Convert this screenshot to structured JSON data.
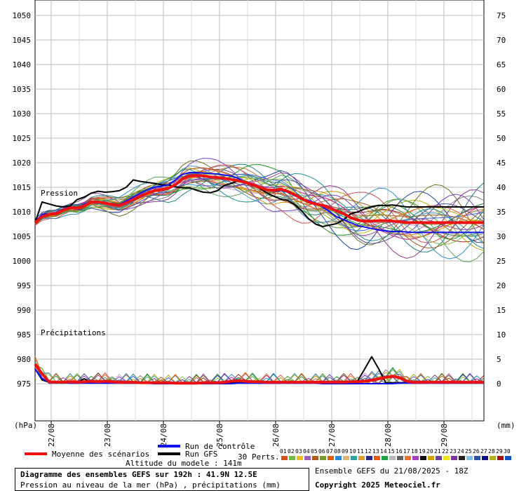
{
  "chart_data": {
    "type": "line",
    "title": "Diagramme des ensembles GEFS sur 192h : 41.9N 12.5E",
    "subtitle": "Pression au niveau de la mer (hPa) , précipitations (mm)",
    "left_axis_unit": "(hPa)",
    "right_axis_unit": "(mm)",
    "left_ticks": [
      1050,
      1045,
      1040,
      1035,
      1030,
      1025,
      1020,
      1015,
      1010,
      1005,
      1000,
      995,
      990,
      985,
      980,
      975
    ],
    "right_ticks": [
      75,
      70,
      65,
      60,
      55,
      50,
      45,
      40,
      35,
      30,
      25,
      20,
      15,
      10,
      5,
      0
    ],
    "ylim_pressure": [
      968.5,
      1052
    ],
    "x_ticks": [
      "22/08",
      "23/08",
      "24/08",
      "25/08",
      "26/08",
      "27/08",
      "28/08",
      "29/08"
    ],
    "pressure_label": "Pression",
    "precip_label": "Précipitations",
    "steps": 65,
    "series": [
      {
        "name": "Moyenne des scénarios",
        "role": "mean",
        "color": "#ee1111",
        "pressure": [
          1007.8,
          1009,
          1009.5,
          1009.6,
          1010.3,
          1010.8,
          1010.8,
          1011.2,
          1012,
          1012,
          1011.8,
          1011.5,
          1011.3,
          1011.8,
          1012.5,
          1013.2,
          1013.8,
          1014.3,
          1014.5,
          1014.8,
          1015.5,
          1016.7,
          1017.3,
          1017.4,
          1017.3,
          1017.1,
          1017,
          1016.8,
          1016.6,
          1016.3,
          1016,
          1015.5,
          1015,
          1014.5,
          1014.4,
          1014.6,
          1014.2,
          1013.5,
          1012.7,
          1012,
          1011.6,
          1011.3,
          1010.8,
          1010.2,
          1009.6,
          1008.8,
          1008.3,
          1008.1,
          1008.1,
          1008.2,
          1008.2,
          1008.1,
          1008,
          1007.8,
          1007.8,
          1007.8,
          1007.8,
          1007.8,
          1007.8,
          1007.8,
          1007.8,
          1007.8,
          1007.8,
          1007.8,
          1007.8
        ],
        "precip": [
          4,
          2,
          0.4,
          0.3,
          0.3,
          0.4,
          0.3,
          0.4,
          0.5,
          0.4,
          0.5,
          0.4,
          0.3,
          0.3,
          0.3,
          0.2,
          0.2,
          0.2,
          0.2,
          0.2,
          0.1,
          0.1,
          0.1,
          0.1,
          0.2,
          0.2,
          0.2,
          0.3,
          0.5,
          0.6,
          0.5,
          0.4,
          0.4,
          0.3,
          0.3,
          0.3,
          0.3,
          0.3,
          0.3,
          0.3,
          0.3,
          0.3,
          0.3,
          0.3,
          0.3,
          0.4,
          0.4,
          0.5,
          0.7,
          1,
          1.3,
          1.5,
          1.2,
          0.5,
          0.3,
          0.3,
          0.3,
          0.3,
          0.3,
          0.3,
          0.3,
          0.3,
          0.3,
          0.3,
          0.3
        ]
      },
      {
        "name": "Run de contrôle",
        "role": "control",
        "color": "#1111ee",
        "pressure": [
          1007.8,
          1009.5,
          1009.6,
          1009.8,
          1010.5,
          1010.9,
          1010.8,
          1011.5,
          1012,
          1011.8,
          1011.7,
          1011.6,
          1011.5,
          1012.2,
          1013,
          1013.8,
          1014.5,
          1015,
          1015.2,
          1015.5,
          1016.5,
          1017.6,
          1018,
          1018,
          1017.9,
          1017.8,
          1017.7,
          1017.5,
          1017.3,
          1016.8,
          1016,
          1015.5,
          1015,
          1014.5,
          1014.2,
          1014.4,
          1014,
          1013.3,
          1012.7,
          1012.3,
          1011.8,
          1011,
          1010,
          1009,
          1008.4,
          1007.8,
          1007.2,
          1006.9,
          1006.6,
          1006.3,
          1006.1,
          1006,
          1006,
          1005.9,
          1005.8,
          1005.8,
          1005.8,
          1005.8,
          1005.8,
          1005.8,
          1005.8,
          1005.8,
          1005.8,
          1005.8,
          1005.8
        ],
        "precip": [
          3,
          1,
          0.3,
          0.2,
          0.2,
          0.1,
          0.1,
          0.1,
          0.1,
          0.1,
          0.1,
          0.1,
          0.1,
          0.1,
          0.1,
          0.1,
          0.1,
          0,
          0,
          0,
          0,
          0,
          0,
          0,
          0,
          0,
          0,
          0,
          0,
          0.1,
          0.1,
          0.1,
          0.1,
          0.1,
          0.1,
          0.1,
          0.1,
          0.1,
          0.1,
          0.1,
          0.1,
          0,
          0,
          0,
          0,
          0,
          0,
          0,
          0,
          0,
          0,
          0,
          0.1,
          0.1,
          0.1,
          0.1,
          0.1,
          0.1,
          0.1,
          0.1,
          0.1,
          0.1,
          0.1,
          0.1,
          0.1
        ]
      },
      {
        "name": "Run GFS",
        "role": "gfs",
        "color": "#000000",
        "pressure": [
          1007.8,
          1012,
          1011.6,
          1011.2,
          1011,
          1011.2,
          1012.5,
          1013,
          1013.8,
          1014.2,
          1014,
          1014.1,
          1014.3,
          1015,
          1016.5,
          1016.2,
          1016,
          1015.8,
          1015.5,
          1015.5,
          1015.1,
          1014.9,
          1014.9,
          1014.4,
          1014,
          1013.9,
          1014.3,
          1015.4,
          1015.8,
          1016.4,
          1016.1,
          1015.5,
          1014.8,
          1013.9,
          1013.2,
          1012.6,
          1012.3,
          1011.5,
          1010.2,
          1008.6,
          1007.5,
          1007,
          1007.3,
          1007.6,
          1008.4,
          1009.6,
          1010,
          1010.6,
          1011,
          1011.3,
          1011.3,
          1011.4,
          1011.2,
          1011,
          1011,
          1011,
          1011,
          1011,
          1011,
          1011,
          1011,
          1011,
          1011,
          1011,
          1011
        ],
        "precip": [
          3,
          0.8,
          0.3,
          0.2,
          0.2,
          0.2,
          0.3,
          1,
          0.3,
          0.2,
          0.2,
          0.2,
          0.2,
          0.2,
          0.2,
          0.2,
          0.2,
          0.2,
          0.2,
          0.1,
          0.1,
          0.1,
          0.1,
          0.1,
          0.1,
          0.2,
          0.2,
          0.2,
          0.2,
          0.2,
          0.2,
          0.2,
          0.2,
          0.2,
          0.2,
          0.2,
          0.2,
          0.2,
          0.2,
          0.2,
          0.2,
          0.2,
          0.2,
          0.2,
          0.2,
          0.2,
          0.6,
          3,
          5.5,
          3,
          0.2,
          0.2,
          0.2,
          0.2,
          0.2,
          0.2,
          0.2,
          0.2,
          0.2,
          0.2,
          0.2,
          0.2,
          0.2,
          0.2,
          0.2
        ]
      }
    ],
    "perturbations_count": 30,
    "perturbation_colors": [
      "#888888",
      "#3b8a3b",
      "#8a3b8a",
      "#c08040",
      "#a02020",
      "#208080",
      "#4a9a2a",
      "#c8a0d0",
      "#209020",
      "#b0b000",
      "#e08020",
      "#2040a0",
      "#40a0c0",
      "#c02080",
      "#707020",
      "#d09000",
      "#208040",
      "#8040c0",
      "#a06020",
      "#4060e0",
      "#d05050",
      "#80c040",
      "#c0c020",
      "#3090c0",
      "#a040a0",
      "#e06040",
      "#60a060",
      "#5050a0",
      "#b06030",
      "#209090"
    ]
  },
  "legend": {
    "mean": "Moyenne des scénarios",
    "control": "Run de contrôle",
    "gfs": "Run GFS",
    "altitude": "Altitude du modele : 141m",
    "perts": "30 Perts.",
    "pert_numbers": [
      "01",
      "02",
      "03",
      "04",
      "05",
      "06",
      "07",
      "08",
      "09",
      "10",
      "11",
      "12",
      "13",
      "14",
      "15",
      "16",
      "17",
      "18",
      "19",
      "20",
      "21",
      "22",
      "23",
      "24",
      "25",
      "26",
      "27",
      "28",
      "29",
      "30"
    ],
    "pert_swatch_colors": [
      "#d84f1a",
      "#78b848",
      "#e8c020",
      "#9a5fb8",
      "#b05a20",
      "#7a9a30",
      "#d86010",
      "#2888d8",
      "#d8b870",
      "#30a0a0",
      "#e0a030",
      "#2a2a80",
      "#e05a10",
      "#20a040",
      "#b8b8b8",
      "#606060",
      "#e87030",
      "#a040c0",
      "#101010",
      "#d0a000",
      "#7040a0",
      "#f0e020",
      "#8030a0",
      "#202020",
      "#80c0e0",
      "#3050a0",
      "#101080",
      "#b0b020",
      "#a01010",
      "#1050c0"
    ]
  },
  "footer": {
    "title": "Diagramme des ensembles GEFS sur 192h : 41.9N 12.5E",
    "subtitle": "Pression au niveau de la mer (hPa) , précipitations (mm)",
    "run": "Ensemble GEFS du 21/08/2025 - 18Z",
    "copyright": "Copyright 2025 Meteociel.fr"
  }
}
